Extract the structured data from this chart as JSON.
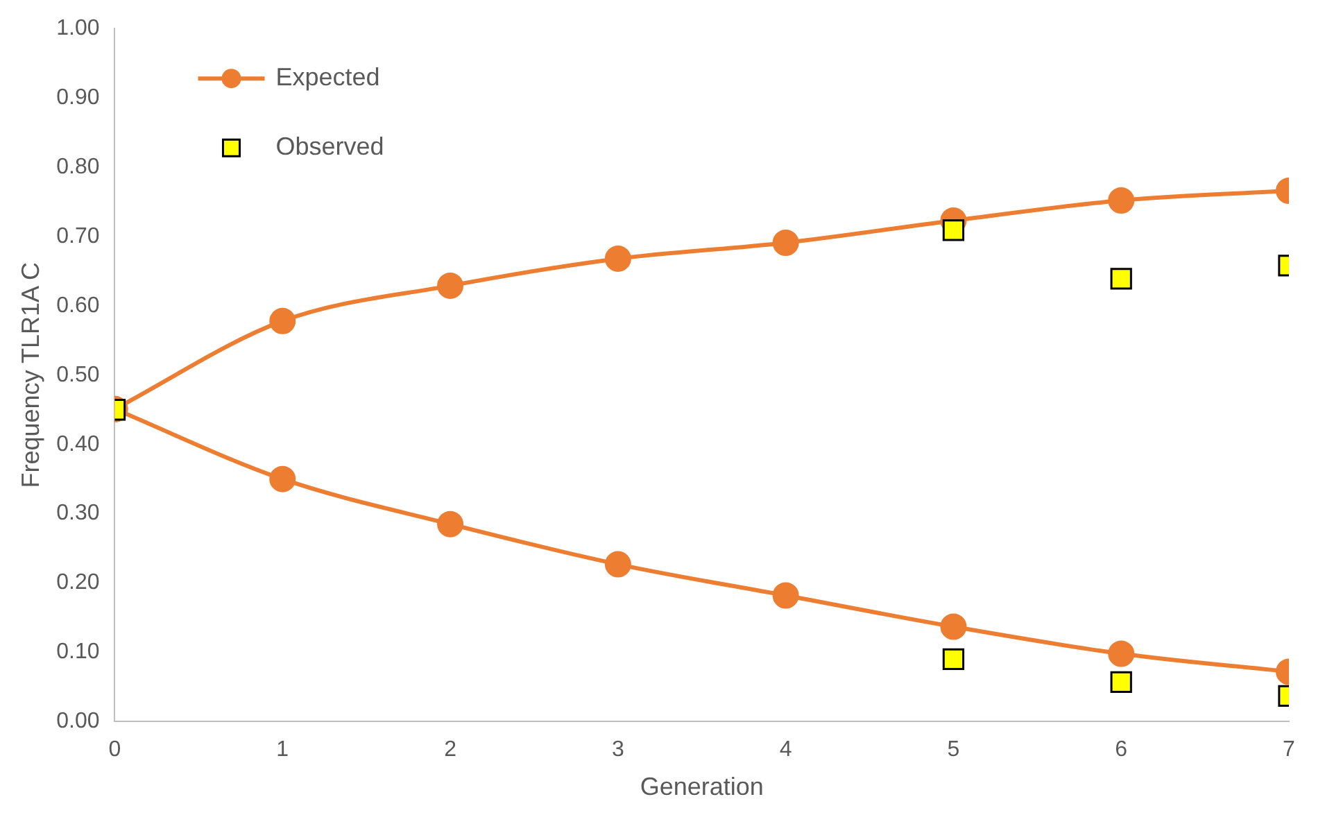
{
  "chart_data": {
    "type": "line",
    "xlabel": "Generation",
    "ylabel": "Frequency TLR1A C",
    "xlim": [
      0,
      7
    ],
    "xticks": [
      0,
      1,
      2,
      3,
      4,
      5,
      6,
      7
    ],
    "ylim": [
      0,
      1
    ],
    "yticks": [
      {
        "value": 0,
        "label": "0.00"
      },
      {
        "value": 0.1,
        "label": "0.10"
      },
      {
        "value": 0.2,
        "label": "0.20"
      },
      {
        "value": 0.3,
        "label": "0.30"
      },
      {
        "value": 0.4,
        "label": "0.40"
      },
      {
        "value": 0.5,
        "label": "0.50"
      },
      {
        "value": 0.6,
        "label": "0.60"
      },
      {
        "value": 0.7,
        "label": "0.70"
      },
      {
        "value": 0.8,
        "label": "0.80"
      },
      {
        "value": 0.9,
        "label": "0.90"
      },
      {
        "value": 1,
        "label": "1.00"
      }
    ],
    "grid": false,
    "legend": "top left",
    "series": [
      {
        "name": "Expected",
        "type": "line",
        "color": "#ed7d31",
        "marker": "circle",
        "x": [
          0,
          1,
          2,
          3,
          4,
          5,
          6,
          7
        ],
        "values": [
          0.451,
          0.578,
          0.629,
          0.668,
          0.691,
          0.723,
          0.752,
          0.766
        ]
      },
      {
        "type": "line",
        "color": "#ed7d31",
        "marker": "circle",
        "x": [
          0,
          1,
          2,
          3,
          4,
          5,
          6,
          7
        ],
        "values": [
          0.451,
          0.35,
          0.285,
          0.227,
          0.182,
          0.137,
          0.098,
          0.072
        ]
      },
      {
        "name": "Observed",
        "type": "scatter",
        "color": "#ffff00",
        "marker": "square",
        "x": [
          0,
          5,
          5,
          6,
          6,
          7,
          7
        ],
        "values": [
          0.45,
          0.709,
          0.09,
          0.639,
          0.057,
          0.658,
          0.037
        ]
      }
    ]
  }
}
